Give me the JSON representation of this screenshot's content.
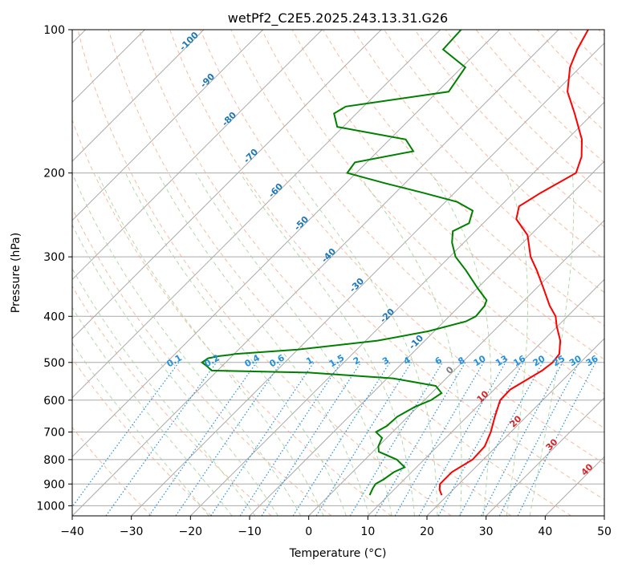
{
  "chart_data": {
    "type": "line",
    "title": "wetPf2_C2E5.2025.243.13.31.G26",
    "xlabel": "Temperature (°C)",
    "ylabel": "Pressure (hPa)",
    "xlim": [
      -40,
      50
    ],
    "ylim": [
      1050,
      100
    ],
    "y_scale": "log",
    "skew": true,
    "grid": true,
    "x_ticks": [
      "−40",
      "−30",
      "−20",
      "−10",
      "0",
      "10",
      "20",
      "30",
      "40",
      "50"
    ],
    "x_tick_values": [
      -40,
      -30,
      -20,
      -10,
      0,
      10,
      20,
      30,
      40,
      50
    ],
    "y_ticks": [
      "100",
      "200",
      "300",
      "400",
      "500",
      "600",
      "700",
      "800",
      "900",
      "1000"
    ],
    "y_tick_values": [
      100,
      200,
      300,
      400,
      500,
      600,
      700,
      800,
      900,
      1000
    ],
    "series": [
      {
        "color": "#ff0000",
        "p": [
          950,
          925,
          900,
          850,
          800,
          750,
          700,
          650,
          600,
          570,
          540,
          520,
          500,
          480,
          450,
          420,
          400,
          380,
          350,
          320,
          300,
          270,
          250,
          235,
          220,
          200,
          185,
          170,
          150,
          135,
          120,
          110,
          100
        ],
        "t": [
          19,
          17.7,
          16.8,
          16.8,
          18.2,
          18.0,
          16.6,
          14.7,
          12.8,
          12.7,
          14.0,
          14.9,
          15.3,
          15.0,
          12.9,
          9.9,
          8.0,
          5.2,
          1.3,
          -3.0,
          -6.3,
          -10.5,
          -15.1,
          -16.8,
          -15.4,
          -12.8,
          -14.6,
          -17.5,
          -23.1,
          -28.0,
          -31.7,
          -33.5,
          -35.0
        ]
      },
      {
        "color": "#008000",
        "p": [
          950,
          920,
          900,
          880,
          850,
          830,
          800,
          770,
          750,
          720,
          700,
          680,
          650,
          620,
          600,
          580,
          560,
          540,
          525,
          520,
          510,
          500,
          490,
          485,
          482,
          480,
          470,
          450,
          430,
          410,
          400,
          380,
          370,
          350,
          320,
          300,
          280,
          265,
          255,
          240,
          230,
          220,
          210,
          200,
          190,
          180,
          170,
          160,
          150,
          145,
          135,
          120,
          110,
          100
        ],
        "t": [
          6.8,
          6.2,
          5.9,
          6.5,
          7.0,
          8.0,
          5.4,
          1.0,
          0.0,
          -0.8,
          -2.8,
          -2.0,
          -1.8,
          -0.5,
          1.1,
          1.7,
          -0.5,
          -9.0,
          -24.3,
          -41.0,
          -42.4,
          -44.0,
          -43.7,
          -42.2,
          -40.5,
          -39.9,
          -30.0,
          -18.0,
          -11.0,
          -6.3,
          -5.5,
          -5.8,
          -6.4,
          -9.8,
          -15.0,
          -19.0,
          -22.0,
          -23.8,
          -22.4,
          -23.9,
          -28.0,
          -35.4,
          -43.5,
          -51.5,
          -52.0,
          -44.0,
          -47.3,
          -61.0,
          -63.8,
          -63.0,
          -48.1,
          -49.4,
          -56.2,
          -56.5
        ]
      }
    ],
    "dry_adiabat_labels": [
      "-100",
      "-90",
      "-80",
      "-70",
      "-60",
      "-50",
      "-40",
      "-30",
      "-20",
      "-10",
      "0",
      "10",
      "20",
      "30",
      "40"
    ],
    "mixing_ratio_labels": [
      "0.1",
      "0.2",
      "0.4",
      "0.6",
      "1",
      "1.5",
      "2",
      "3",
      "4",
      "6",
      "8",
      "10",
      "13",
      "16",
      "20",
      "25",
      "30",
      "36"
    ],
    "colors": {
      "temperature": "#ff0000",
      "dewpoint": "#008000",
      "isotherm": "#aaaaaa",
      "dry_adiabat": "#f4a582",
      "moist_adiabat": "#a6d29a",
      "mixing_ratio": "#1f8fe0",
      "label_blue": "#1f77b4",
      "label_red": "#d62728",
      "label_gray": "#7f7f7f"
    }
  }
}
